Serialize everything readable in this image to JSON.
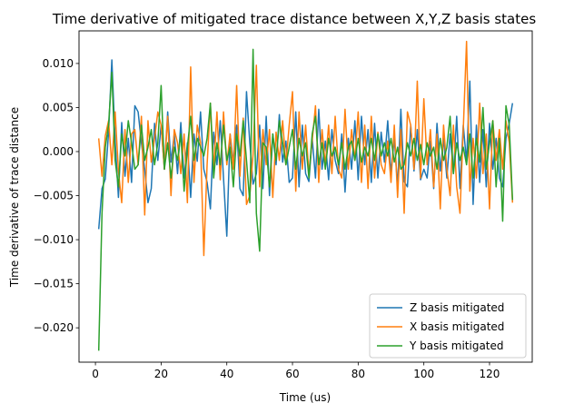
{
  "chart_data": {
    "type": "line",
    "title": "Time derivative of mitigated trace distance between X,Y,Z basis states",
    "xlabel": "Time (us)",
    "ylabel": "Time derivative of trace distance",
    "xlim": [
      -5,
      133
    ],
    "ylim": [
      -0.0239,
      0.0137
    ],
    "xticks": [
      0,
      20,
      40,
      60,
      80,
      100,
      120
    ],
    "xtick_labels": [
      "0",
      "20",
      "40",
      "60",
      "80",
      "100",
      "120"
    ],
    "yticks": [
      -0.02,
      -0.015,
      -0.01,
      -0.005,
      0.0,
      0.005,
      0.01
    ],
    "ytick_labels": [
      "−0.020",
      "−0.015",
      "−0.010",
      "−0.005",
      "0.000",
      "0.005",
      "0.010"
    ],
    "grid": false,
    "legend_position": "lower-right",
    "series": [
      {
        "name": "Z basis mitigated",
        "color": "#1f77b4",
        "x": [
          1,
          2,
          3,
          4,
          5,
          6,
          7,
          8,
          9,
          10,
          11,
          12,
          13,
          14,
          15,
          16,
          17,
          18,
          19,
          20,
          21,
          22,
          23,
          24,
          25,
          26,
          27,
          28,
          29,
          30,
          31,
          32,
          33,
          34,
          35,
          36,
          37,
          38,
          39,
          40,
          41,
          42,
          43,
          44,
          45,
          46,
          47,
          48,
          49,
          50,
          51,
          52,
          53,
          54,
          55,
          56,
          57,
          58,
          59,
          60,
          61,
          62,
          63,
          64,
          65,
          66,
          67,
          68,
          69,
          70,
          71,
          72,
          73,
          74,
          75,
          76,
          77,
          78,
          79,
          80,
          81,
          82,
          83,
          84,
          85,
          86,
          87,
          88,
          89,
          90,
          91,
          92,
          93,
          94,
          95,
          96,
          97,
          98,
          99,
          100,
          101,
          102,
          103,
          104,
          105,
          106,
          107,
          108,
          109,
          110,
          111,
          112,
          113,
          114,
          115,
          116,
          117,
          118,
          119,
          120,
          121,
          122,
          123,
          124,
          125,
          126,
          127
        ],
        "y": [
          -0.0088,
          -0.0042,
          -0.0031,
          0.0022,
          0.0104,
          0.0012,
          -0.0052,
          0.0033,
          -0.0028,
          0.0015,
          -0.0035,
          0.0052,
          0.0045,
          0.001,
          -0.002,
          -0.0058,
          -0.0042,
          0.0032,
          -0.001,
          0.003,
          -0.002,
          0.0045,
          -0.0012,
          0.002,
          -0.0025,
          0.0033,
          -0.003,
          0.001,
          -0.0052,
          0.002,
          -0.0011,
          0.0045,
          -0.002,
          -0.0035,
          -0.0065,
          0.0022,
          -0.0015,
          0.0035,
          -0.003,
          -0.0096,
          0.002,
          -0.0012,
          0.003,
          -0.0042,
          -0.005,
          0.0068,
          0.001,
          -0.0037,
          -0.0025,
          0.003,
          -0.0042,
          0.004,
          -0.005,
          0.002,
          -0.0015,
          0.0042,
          -0.0012,
          0.0012,
          -0.0035,
          -0.003,
          0.0045,
          -0.004,
          0.003,
          -0.0025,
          -0.0034,
          0.0015,
          -0.003,
          0.0048,
          -0.002,
          0.0012,
          -0.0032,
          0.0025,
          -0.001,
          -0.0025,
          0.002,
          -0.0046,
          0.0015,
          -0.002,
          0.0035,
          -0.0032,
          0.004,
          -0.0015,
          0.0025,
          -0.0035,
          0.0032,
          -0.003,
          0.0022,
          -0.0012,
          0.0035,
          -0.0025,
          0.0015,
          -0.004,
          0.0048,
          -0.0034,
          -0.004,
          0.003,
          -0.0022,
          0.0025,
          -0.0032,
          -0.002,
          -0.003,
          0.0012,
          -0.0042,
          0.0032,
          -0.0022,
          0.0015,
          -0.003,
          0.002,
          -0.0025,
          0.004,
          -0.0042,
          0.003,
          -0.0012,
          0.008,
          -0.006,
          0.003,
          -0.0035,
          0.0025,
          -0.004,
          0.0032,
          -0.002,
          0.0015,
          -0.003,
          -0.004,
          0.0015,
          0.0032,
          0.0055
        ]
      },
      {
        "name": "X basis mitigated",
        "color": "#ff7f0e",
        "x": [
          1,
          2,
          3,
          4,
          5,
          6,
          7,
          8,
          9,
          10,
          11,
          12,
          13,
          14,
          15,
          16,
          17,
          18,
          19,
          20,
          21,
          22,
          23,
          24,
          25,
          26,
          27,
          28,
          29,
          30,
          31,
          32,
          33,
          34,
          35,
          36,
          37,
          38,
          39,
          40,
          41,
          42,
          43,
          44,
          45,
          46,
          47,
          48,
          49,
          50,
          51,
          52,
          53,
          54,
          55,
          56,
          57,
          58,
          59,
          60,
          61,
          62,
          63,
          64,
          65,
          66,
          67,
          68,
          69,
          70,
          71,
          72,
          73,
          74,
          75,
          76,
          77,
          78,
          79,
          80,
          81,
          82,
          83,
          84,
          85,
          86,
          87,
          88,
          89,
          90,
          91,
          92,
          93,
          94,
          95,
          96,
          97,
          98,
          99,
          100,
          101,
          102,
          103,
          104,
          105,
          106,
          107,
          108,
          109,
          110,
          111,
          112,
          113,
          114,
          115,
          116,
          117,
          118,
          119,
          120,
          121,
          122,
          123,
          124,
          125,
          126,
          127
        ],
        "y": [
          0.0015,
          -0.0028,
          0.0018,
          0.0035,
          -0.0015,
          0.0045,
          -0.0022,
          -0.0058,
          0.0025,
          -0.0035,
          0.002,
          0.0025,
          -0.0015,
          0.004,
          -0.0072,
          0.0035,
          -0.0012,
          0.0015,
          0.0045,
          0.003,
          -0.002,
          0.004,
          -0.005,
          0.0025,
          0.001,
          -0.0025,
          0.002,
          -0.0058,
          0.0096,
          -0.0035,
          0.003,
          0.001,
          -0.0118,
          -0.0015,
          0.0055,
          -0.002,
          0.0045,
          -0.0032,
          0.0045,
          -0.0015,
          0.002,
          -0.002,
          0.0075,
          -0.0028,
          0.0038,
          -0.006,
          -0.005,
          -0.0003,
          0.0098,
          -0.004,
          0.0025,
          -0.0015,
          0.0025,
          -0.0052,
          0.0022,
          -0.001,
          0.0035,
          -0.0015,
          0.003,
          0.0068,
          -0.0045,
          0.0045,
          -0.002,
          0.003,
          -0.0025,
          0.0012,
          0.0052,
          -0.0035,
          0.0025,
          -0.0015,
          0.003,
          -0.0025,
          0.004,
          -0.002,
          -0.003,
          0.0048,
          -0.002,
          0.0025,
          -0.001,
          0.0045,
          -0.0035,
          0.003,
          -0.0042,
          0.004,
          -0.003,
          0.0022,
          -0.0015,
          -0.0025,
          0.0012,
          -0.0035,
          0.003,
          -0.0052,
          0.0025,
          -0.007,
          0.0045,
          0.003,
          -0.002,
          0.008,
          -0.003,
          0.006,
          -0.0015,
          0.0025,
          -0.004,
          0.002,
          -0.0065,
          0.003,
          -0.002,
          -0.005,
          0.003,
          -0.004,
          -0.007,
          0.0025,
          0.0125,
          -0.0045,
          0.0015,
          -0.003,
          0.0055,
          -0.0025,
          0.002,
          -0.0065,
          0.0035,
          -0.001,
          0.0025,
          -0.002,
          0.0035,
          0.001,
          -0.0058
        ]
      },
      {
        "name": "Y basis mitigated",
        "color": "#2ca02c",
        "x": [
          1,
          2,
          3,
          4,
          5,
          6,
          7,
          8,
          9,
          10,
          11,
          12,
          13,
          14,
          15,
          16,
          17,
          18,
          19,
          20,
          21,
          22,
          23,
          24,
          25,
          26,
          27,
          28,
          29,
          30,
          31,
          32,
          33,
          34,
          35,
          36,
          37,
          38,
          39,
          40,
          41,
          42,
          43,
          44,
          45,
          46,
          47,
          48,
          49,
          50,
          51,
          52,
          53,
          54,
          55,
          56,
          57,
          58,
          59,
          60,
          61,
          62,
          63,
          64,
          65,
          66,
          67,
          68,
          69,
          70,
          71,
          72,
          73,
          74,
          75,
          76,
          77,
          78,
          79,
          80,
          81,
          82,
          83,
          84,
          85,
          86,
          87,
          88,
          89,
          90,
          91,
          92,
          93,
          94,
          95,
          96,
          97,
          98,
          99,
          100,
          101,
          102,
          103,
          104,
          105,
          106,
          107,
          108,
          109,
          110,
          111,
          112,
          113,
          114,
          115,
          116,
          117,
          118,
          119,
          120,
          121,
          122,
          123,
          124,
          125,
          126,
          127
        ],
        "y": [
          -0.0226,
          -0.007,
          0.0005,
          0.003,
          0.009,
          -0.001,
          -0.004,
          0.002,
          -0.0005,
          0.0035,
          0.001,
          -0.002,
          -0.0015,
          0.003,
          -0.001,
          0.0005,
          0.0025,
          -0.0015,
          0.001,
          0.0075,
          -0.002,
          0.001,
          -0.003,
          0.0005,
          -0.001,
          0.002,
          -0.0045,
          0.0005,
          0.004,
          -0.001,
          0.0015,
          0.0005,
          -0.0005,
          0.0015,
          0.0055,
          -0.003,
          0.001,
          -0.0015,
          0.003,
          -0.001,
          0.0005,
          -0.004,
          0.002,
          -0.0005,
          0.0035,
          -0.001,
          -0.0058,
          0.0116,
          -0.007,
          -0.0113,
          0.001,
          0.0005,
          -0.004,
          0.002,
          -0.001,
          0.0035,
          0.001,
          -0.0015,
          0.0005,
          0.0025,
          -0.002,
          0.0015,
          -0.0005,
          0.001,
          -0.003,
          0.002,
          0.004,
          -0.0015,
          0.001,
          -0.002,
          0.0015,
          -0.0005,
          0.0005,
          -0.0015,
          0.001,
          -0.002,
          0.0005,
          0.0012,
          -0.001,
          0.0015,
          -0.0012,
          0.0005,
          -0.0005,
          0.0015,
          -0.001,
          0.002,
          -0.0005,
          0.001,
          -0.0005,
          0.0015,
          -0.0012,
          0.0005,
          -0.002,
          -0.0015,
          0.001,
          -0.0005,
          0.0015,
          -0.001,
          0.0008,
          -0.0015,
          0.001,
          -0.0005,
          0.0005,
          -0.002,
          0.0015,
          -0.001,
          0.0005,
          0.004,
          -0.0025,
          0.001,
          -0.001,
          0.0005,
          -0.0015,
          0.002,
          -0.003,
          0.0015,
          -0.0012,
          0.005,
          -0.002,
          0.001,
          0.0035,
          -0.004,
          0.0015,
          -0.0079,
          0.0052,
          0.003,
          -0.0055
        ]
      }
    ]
  }
}
